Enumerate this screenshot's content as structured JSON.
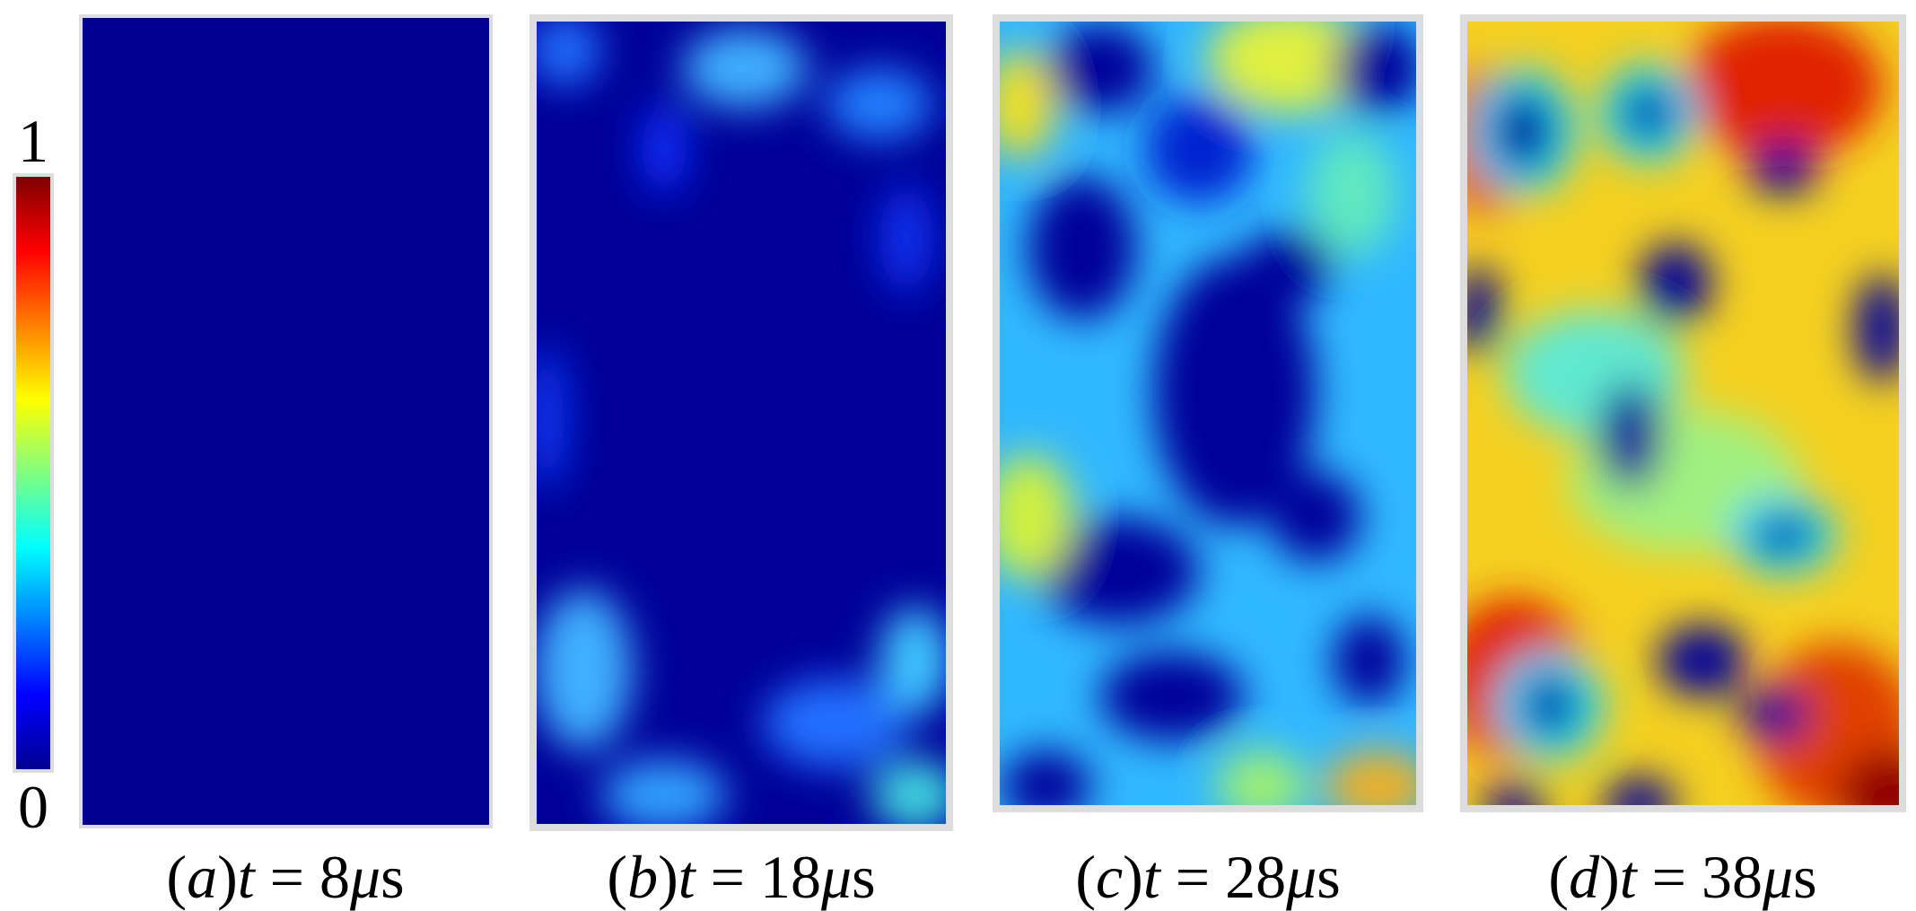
{
  "colorbar": {
    "max_label": "1",
    "min_label": "0"
  },
  "panels": [
    {
      "caption": [
        {
          "text": "(",
          "italic": false
        },
        {
          "text": "a",
          "italic": true
        },
        {
          "text": ")",
          "italic": false
        },
        {
          "text": "t",
          "italic": true
        },
        {
          "text": " = 8",
          "italic": false
        },
        {
          "text": "μ",
          "italic": true
        },
        {
          "text": "s",
          "italic": false
        }
      ]
    },
    {
      "caption": [
        {
          "text": "(",
          "italic": false
        },
        {
          "text": "b",
          "italic": true
        },
        {
          "text": ")",
          "italic": false
        },
        {
          "text": "t",
          "italic": true
        },
        {
          "text": " = 18",
          "italic": false
        },
        {
          "text": "μ",
          "italic": true
        },
        {
          "text": "s",
          "italic": false
        }
      ]
    },
    {
      "caption": [
        {
          "text": "(",
          "italic": false
        },
        {
          "text": "c",
          "italic": true
        },
        {
          "text": ")",
          "italic": false
        },
        {
          "text": "t",
          "italic": true
        },
        {
          "text": " = 28",
          "italic": false
        },
        {
          "text": "μ",
          "italic": true
        },
        {
          "text": "s",
          "italic": false
        }
      ]
    },
    {
      "caption": [
        {
          "text": "(",
          "italic": false
        },
        {
          "text": "d",
          "italic": true
        },
        {
          "text": ")",
          "italic": false
        },
        {
          "text": "t",
          "italic": true
        },
        {
          "text": " = 38",
          "italic": false
        },
        {
          "text": "μ",
          "italic": true
        },
        {
          "text": "s",
          "italic": false
        }
      ]
    }
  ]
}
